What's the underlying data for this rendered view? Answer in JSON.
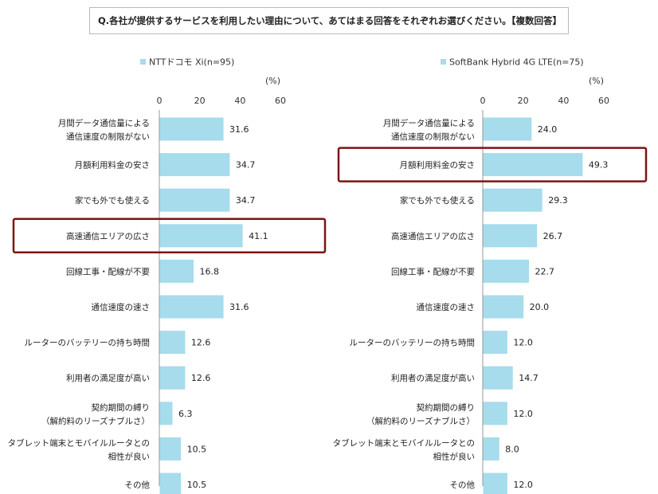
{
  "question": "Q.各社が提供するサービスを利用したい理由について、あてはまる回答をそれぞれお選びください。【複数回答】",
  "chart_data": [
    {
      "type": "bar",
      "orientation": "horizontal",
      "legend": "NTTドコモ Xi(n=95)",
      "unit": "(%)",
      "xlim": [
        0,
        60
      ],
      "ticks": [
        "0",
        "20",
        "40",
        "60"
      ],
      "categories": [
        [
          "月間データ通信量による",
          "通信速度の制限がない"
        ],
        [
          "月額利用料金の安さ"
        ],
        [
          "家でも外でも使える"
        ],
        [
          "高速通信エリアの広さ"
        ],
        [
          "回線工事・配線が不要"
        ],
        [
          "通信速度の速さ"
        ],
        [
          "ルーターのバッテリーの持ち時間"
        ],
        [
          "利用者の満足度が高い"
        ],
        [
          "契約期間の縛り",
          "（解約料のリーズナブルさ）"
        ],
        [
          "タブレット端末とモバイルルータとの",
          "相性が良い"
        ],
        [
          "その他"
        ]
      ],
      "values": [
        31.6,
        34.7,
        34.7,
        41.1,
        16.8,
        31.6,
        12.6,
        12.6,
        6.3,
        10.5,
        10.5
      ],
      "labels": [
        "31.6",
        "34.7",
        "34.7",
        "41.1",
        "16.8",
        "31.6",
        "12.6",
        "12.6",
        "6.3",
        "10.5",
        "10.5"
      ],
      "highlight_index": 3,
      "bar_color": "#a6dcec",
      "highlight_color": "#7b1515"
    },
    {
      "type": "bar",
      "orientation": "horizontal",
      "legend": "SoftBank Hybrid 4G LTE(n=75)",
      "unit": "(%)",
      "xlim": [
        0,
        60
      ],
      "ticks": [
        "0",
        "20",
        "40",
        "60"
      ],
      "categories": [
        [
          "月間データ通信量による",
          "通信速度の制限がない"
        ],
        [
          "月額利用料金の安さ"
        ],
        [
          "家でも外でも使える"
        ],
        [
          "高速通信エリアの広さ"
        ],
        [
          "回線工事・配線が不要"
        ],
        [
          "通信速度の速さ"
        ],
        [
          "ルーターのバッテリーの持ち時間"
        ],
        [
          "利用者の満足度が高い"
        ],
        [
          "契約期間の縛り",
          "（解約料のリーズナブルさ）"
        ],
        [
          "タブレット端末とモバイルルータとの",
          "相性が良い"
        ],
        [
          "その他"
        ]
      ],
      "values": [
        24.0,
        49.3,
        29.3,
        26.7,
        22.7,
        20.0,
        12.0,
        14.7,
        12.0,
        8.0,
        12.0
      ],
      "labels": [
        "24.0",
        "49.3",
        "29.3",
        "26.7",
        "22.7",
        "20.0",
        "12.0",
        "14.7",
        "12.0",
        "8.0",
        "12.0"
      ],
      "highlight_index": 1,
      "bar_color": "#a6dcec",
      "highlight_color": "#7b1515"
    }
  ]
}
